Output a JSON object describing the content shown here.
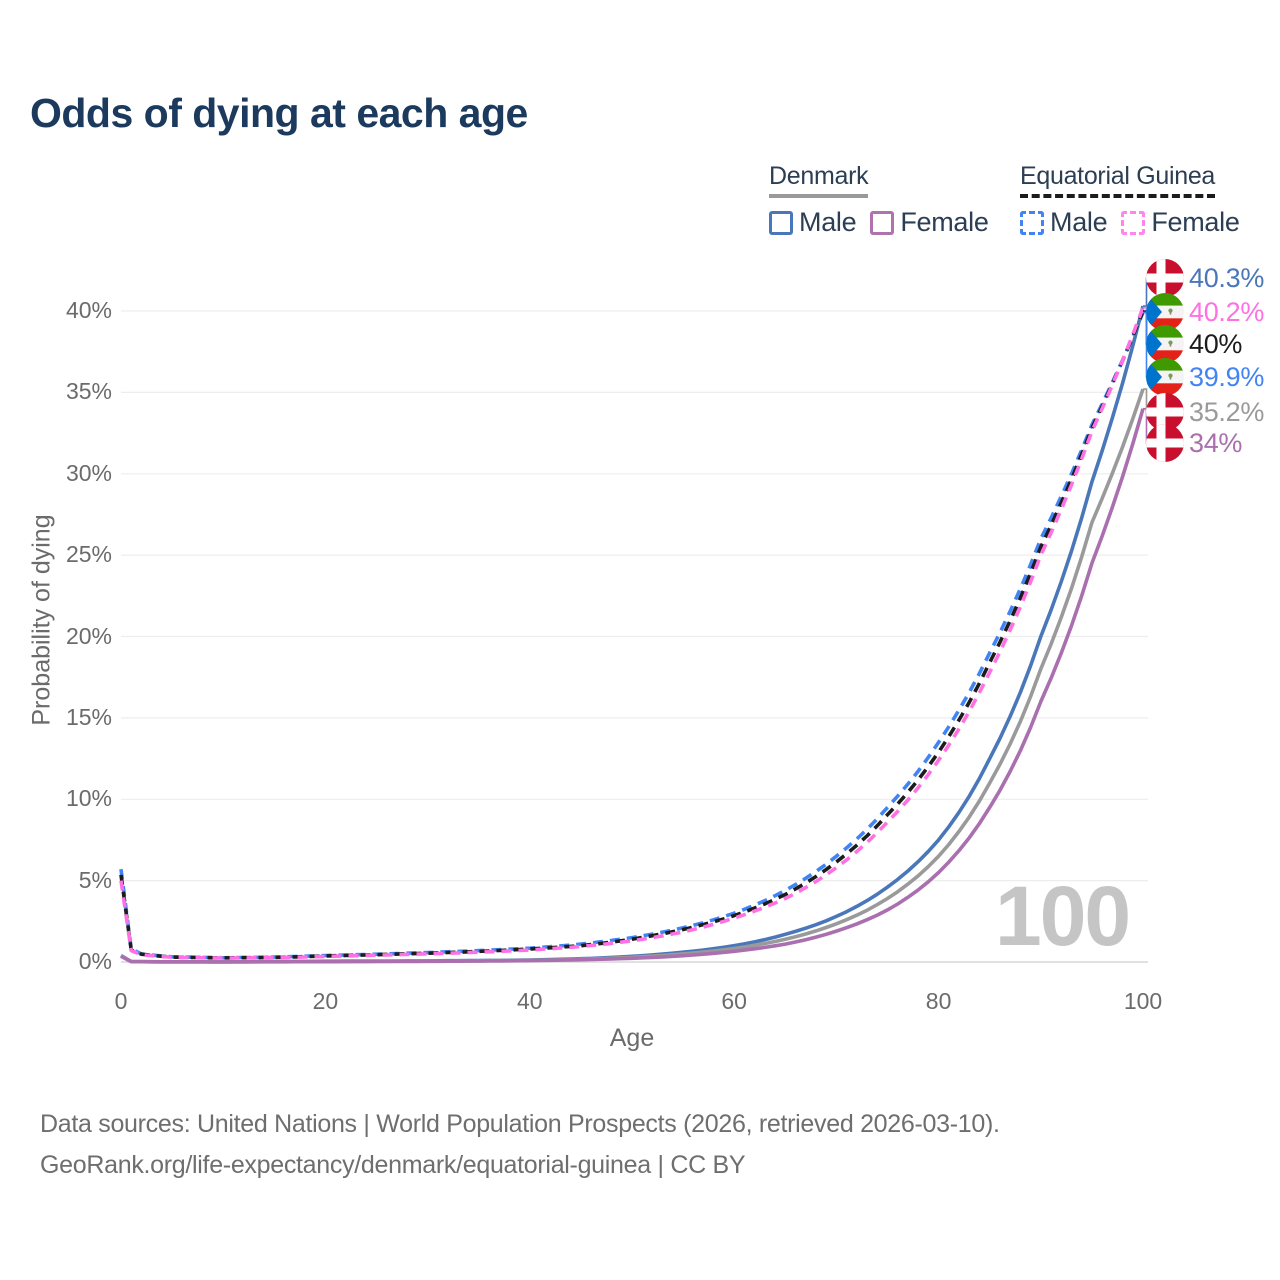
{
  "title": "Odds of dying at each age",
  "legend": {
    "denmark": {
      "label": "Denmark",
      "male_label": "Male",
      "female_label": "Female",
      "male_color": "#4a77b9",
      "female_color": "#af72af",
      "line_color": "#999999",
      "line_style": "solid"
    },
    "equatorial_guinea": {
      "label": "Equatorial Guinea",
      "male_label": "Male",
      "female_label": "Female",
      "male_color": "#4184f4",
      "female_color": "#ff85ee",
      "line_color": "#1c1c1c",
      "line_style": "dashed"
    }
  },
  "watermark": "100",
  "end_labels": [
    {
      "value": "40.3%",
      "flag": "denmark",
      "series_index": 0,
      "color": "#4a77b9"
    },
    {
      "value": "40.2%",
      "flag": "equatorial-guinea",
      "series_index": 5,
      "color": "#ff70e4"
    },
    {
      "value": "40%",
      "flag": "equatorial-guinea",
      "series_index": 4,
      "color": "#1c1c1c"
    },
    {
      "value": "39.9%",
      "flag": "equatorial-guinea",
      "series_index": 3,
      "color": "#4184f4"
    },
    {
      "value": "35.2%",
      "flag": "denmark",
      "series_index": 1,
      "color": "#9a9a9a"
    },
    {
      "value": "34%",
      "flag": "denmark",
      "series_index": 2,
      "color": "#a96fae"
    }
  ],
  "footer": {
    "line1": "Data sources: United Nations | World Population Prospects (2026, retrieved 2026-03-10).",
    "line2": "GeoRank.org/life-expectancy/denmark/equatorial-guinea | CC BY"
  },
  "chart_data": {
    "type": "line",
    "title": "Odds of dying at each age",
    "xlabel": "Age",
    "ylabel": "Probability of dying",
    "xlim": [
      0,
      100
    ],
    "ylim": [
      0,
      42
    ],
    "x_ticks": [
      0,
      20,
      40,
      60,
      80,
      100
    ],
    "y_ticks": [
      0,
      5,
      10,
      15,
      20,
      25,
      30,
      35,
      40
    ],
    "y_tick_suffix": "%",
    "grid": "horizontal",
    "legend_position": "top-right",
    "x": [
      0,
      1,
      2,
      5,
      10,
      15,
      20,
      25,
      30,
      35,
      40,
      45,
      50,
      55,
      60,
      65,
      70,
      75,
      80,
      85,
      90,
      95,
      100
    ],
    "series": [
      {
        "name": "Denmark Male",
        "style": "solid",
        "color": "#4a77b9",
        "end_label": "40.3%",
        "values": [
          0.4,
          0.03,
          0.02,
          0.012,
          0.01,
          0.022,
          0.05,
          0.06,
          0.07,
          0.09,
          0.12,
          0.2,
          0.35,
          0.6,
          1.0,
          1.7,
          2.8,
          4.6,
          7.5,
          12.5,
          20.0,
          29.5,
          40.3
        ]
      },
      {
        "name": "Denmark Both sexes",
        "style": "solid",
        "color": "#9a9a9a",
        "end_label": "35.2%",
        "values": [
          0.38,
          0.026,
          0.018,
          0.011,
          0.01,
          0.018,
          0.035,
          0.044,
          0.055,
          0.074,
          0.1,
          0.17,
          0.29,
          0.5,
          0.83,
          1.4,
          2.35,
          3.9,
          6.5,
          11.0,
          18.0,
          27.0,
          35.2
        ]
      },
      {
        "name": "Denmark Female",
        "style": "solid",
        "color": "#a96fae",
        "end_label": "34%",
        "values": [
          0.35,
          0.022,
          0.016,
          0.01,
          0.009,
          0.014,
          0.02,
          0.028,
          0.04,
          0.058,
          0.085,
          0.14,
          0.23,
          0.39,
          0.66,
          1.1,
          1.9,
          3.2,
          5.5,
          9.5,
          16.0,
          24.5,
          34.0
        ]
      },
      {
        "name": "Equatorial Guinea Male",
        "style": "dashed",
        "color": "#4184f4",
        "end_label": "39.9%",
        "values": [
          5.7,
          0.8,
          0.5,
          0.32,
          0.26,
          0.3,
          0.4,
          0.48,
          0.58,
          0.7,
          0.85,
          1.1,
          1.5,
          2.1,
          3.0,
          4.4,
          6.5,
          9.5,
          13.5,
          19.0,
          26.0,
          33.0,
          39.9
        ]
      },
      {
        "name": "Equatorial Guinea Both sexes",
        "style": "dashed",
        "color": "#1c1c1c",
        "end_label": "40%",
        "values": [
          5.35,
          0.75,
          0.48,
          0.3,
          0.25,
          0.28,
          0.37,
          0.45,
          0.54,
          0.65,
          0.8,
          1.0,
          1.4,
          2.0,
          2.85,
          4.15,
          6.15,
          9.05,
          12.9,
          18.4,
          25.5,
          32.8,
          40.0
        ]
      },
      {
        "name": "Equatorial Guinea Female",
        "style": "dashed",
        "color": "#ff70e4",
        "end_label": "40.2%",
        "values": [
          5.0,
          0.7,
          0.45,
          0.29,
          0.24,
          0.27,
          0.34,
          0.42,
          0.5,
          0.6,
          0.74,
          0.95,
          1.3,
          1.85,
          2.7,
          3.9,
          5.8,
          8.6,
          12.4,
          17.8,
          25.0,
          32.6,
          40.2
        ]
      }
    ]
  }
}
